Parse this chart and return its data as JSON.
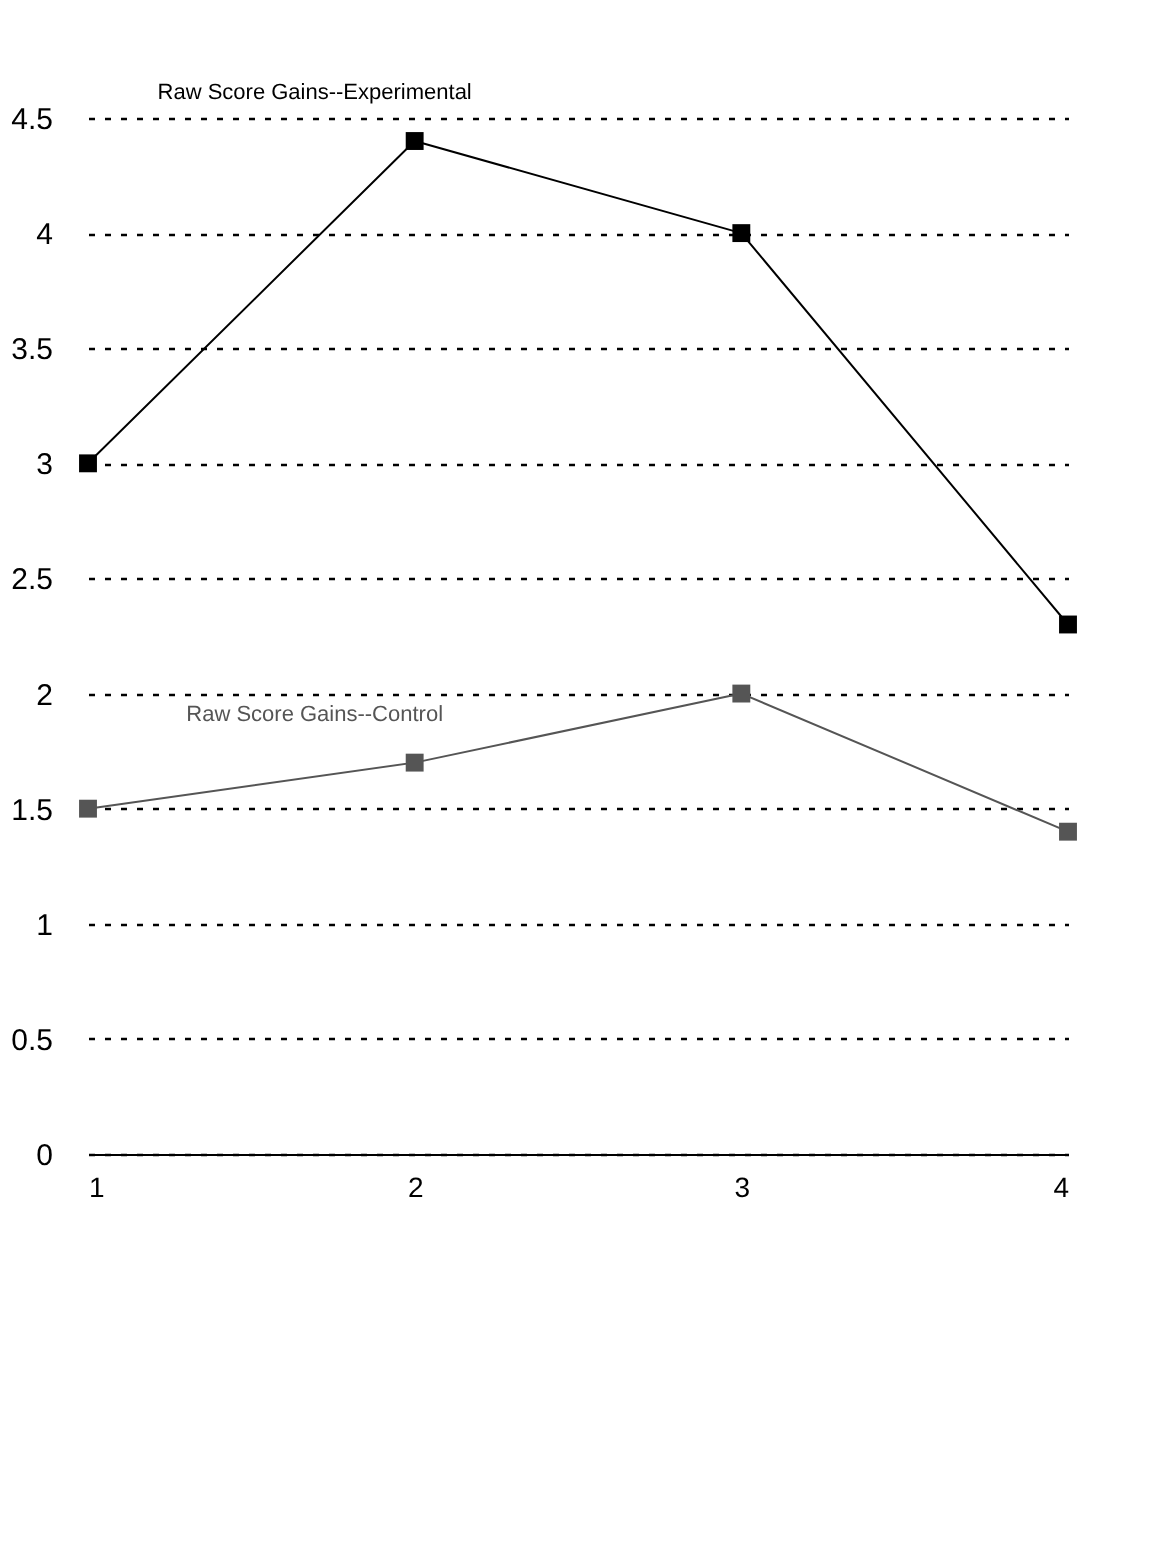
{
  "chart_data": {
    "type": "line",
    "x": [
      1,
      2,
      3,
      4
    ],
    "xlim": [
      1,
      4
    ],
    "xticks": [
      1,
      2,
      3,
      4
    ],
    "ylim": [
      0,
      4.5
    ],
    "yticks": [
      0,
      0.5,
      1,
      1.5,
      2,
      2.5,
      3,
      3.5,
      4,
      4.5
    ],
    "grid": "y",
    "marker": "square",
    "line_style": "solid",
    "series": [
      {
        "name": "Raw Score Gains--Experimental",
        "color": "#000000",
        "values": [
          3,
          4.4,
          4,
          2.3
        ]
      },
      {
        "name": "Raw Score Gains--Control",
        "color": "#555555",
        "values": [
          1.5,
          1.7,
          2,
          1.4
        ]
      }
    ]
  }
}
